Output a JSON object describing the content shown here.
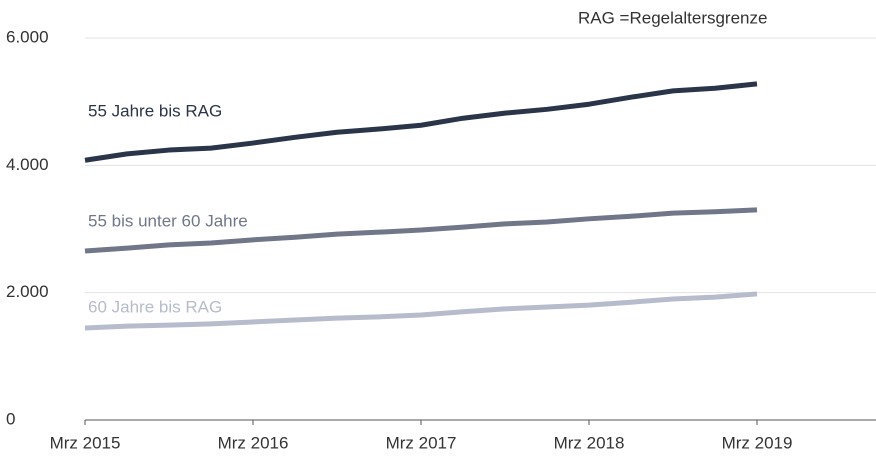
{
  "chart_data": {
    "type": "line",
    "note": "RAG =Regelaltersgrenze",
    "categories": [
      "Mrz 2015",
      null,
      null,
      null,
      "Mrz 2016",
      null,
      null,
      null,
      "Mrz 2017",
      null,
      null,
      null,
      "Mrz 2018",
      null,
      null,
      null,
      "Mrz 2019"
    ],
    "series": [
      {
        "name": "55 Jahre bis RAG",
        "color": "#2b3549",
        "values": [
          4080,
          4180,
          4240,
          4270,
          4350,
          4440,
          4520,
          4570,
          4630,
          4740,
          4820,
          4880,
          4960,
          5070,
          5170,
          5210,
          5280
        ]
      },
      {
        "name": "55 bis unter 60 Jahre",
        "color": "#6f7788",
        "values": [
          2654,
          2700,
          2750,
          2780,
          2830,
          2870,
          2920,
          2950,
          2985,
          3030,
          3080,
          3110,
          3160,
          3200,
          3250,
          3270,
          3300
        ]
      },
      {
        "name": "60 Jahre bis RAG",
        "color": "#b6bccb",
        "values": [
          1445,
          1475,
          1490,
          1510,
          1540,
          1570,
          1600,
          1620,
          1650,
          1700,
          1745,
          1775,
          1805,
          1850,
          1900,
          1930,
          1980
        ]
      }
    ],
    "ylim": [
      0,
      6000
    ],
    "yticks": [
      0,
      {
        "value": 2000,
        "label": "2.000"
      },
      {
        "value": 4000,
        "label": "4.000"
      },
      {
        "value": 6000,
        "label": "6.000"
      }
    ],
    "grid": true
  }
}
